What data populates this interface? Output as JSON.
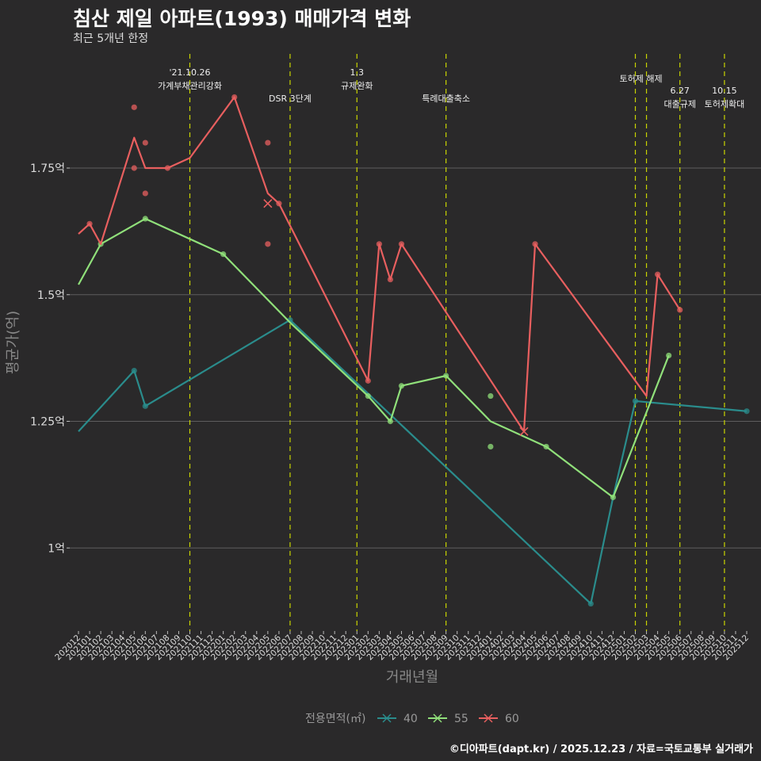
{
  "chart_data": {
    "type": "line",
    "title": "침산 제일 아파트(1993) 매매가격 변화",
    "subtitle": "최근 5개년 한정",
    "xlabel": "거래년월",
    "ylabel": "평균가(억)",
    "caption": "©디아파트(dapt.kr) / 2025.12.23 / 자료=국토교통부 실거래가",
    "legend": {
      "title": "전용면적(㎡)",
      "placement": "bottom"
    },
    "ylim": [
      0.8,
      1.95
    ],
    "yticks": [
      {
        "v": 1.0,
        "label": "1억"
      },
      {
        "v": 1.25,
        "label": "1.25억"
      },
      {
        "v": 1.5,
        "label": "1.5억"
      },
      {
        "v": 1.75,
        "label": "1.75억"
      }
    ],
    "x": [
      "202012",
      "202101",
      "202102",
      "202103",
      "202104",
      "202105",
      "202106",
      "202107",
      "202108",
      "202109",
      "202110",
      "202111",
      "202112",
      "202201",
      "202202",
      "202203",
      "202204",
      "202205",
      "202206",
      "202207",
      "202208",
      "202209",
      "202210",
      "202211",
      "202212",
      "202301",
      "202302",
      "202303",
      "202304",
      "202305",
      "202306",
      "202307",
      "202308",
      "202309",
      "202310",
      "202311",
      "202312",
      "202401",
      "202402",
      "202403",
      "202404",
      "202405",
      "202406",
      "202407",
      "202408",
      "202409",
      "202410",
      "202411",
      "202412",
      "202501",
      "202502",
      "202503",
      "202504",
      "202505",
      "202506",
      "202507",
      "202508",
      "202509",
      "202510",
      "202511",
      "202512"
    ],
    "series": [
      {
        "name": "40",
        "color": "#2a8c8c",
        "line": [
          [
            "202012",
            1.23
          ],
          [
            "202105",
            1.35
          ],
          [
            "202106",
            1.28
          ],
          [
            "202207",
            1.45
          ],
          [
            "202410",
            0.89
          ],
          [
            "202412",
            1.1
          ],
          [
            "202502",
            1.29
          ],
          [
            "202512",
            1.27
          ]
        ],
        "points": [
          [
            "202105",
            1.35
          ],
          [
            "202106",
            1.28
          ],
          [
            "202207",
            1.45
          ],
          [
            "202410",
            0.89
          ],
          [
            "202502",
            1.29
          ],
          [
            "202512",
            1.27
          ]
        ]
      },
      {
        "name": "55",
        "color": "#90e07a",
        "line": [
          [
            "202012",
            1.52
          ],
          [
            "202102",
            1.6
          ],
          [
            "202106",
            1.65
          ],
          [
            "202201",
            1.58
          ],
          [
            "202207",
            1.445
          ],
          [
            "202302",
            1.3
          ],
          [
            "202304",
            1.25
          ],
          [
            "202305",
            1.32
          ],
          [
            "202309",
            1.34
          ],
          [
            "202401",
            1.25
          ],
          [
            "202406",
            1.2
          ],
          [
            "202412",
            1.1
          ],
          [
            "202505",
            1.38
          ]
        ],
        "points": [
          [
            "202102",
            1.6
          ],
          [
            "202106",
            1.65
          ],
          [
            "202201",
            1.58
          ],
          [
            "202302",
            1.3
          ],
          [
            "202304",
            1.25
          ],
          [
            "202305",
            1.32
          ],
          [
            "202309",
            1.34
          ],
          [
            "202401",
            1.3
          ],
          [
            "202401",
            1.2
          ],
          [
            "202406",
            1.2
          ],
          [
            "202412",
            1.1
          ],
          [
            "202505",
            1.38
          ]
        ]
      },
      {
        "name": "60",
        "color": "#e85f5f",
        "line": [
          [
            "202012",
            1.62
          ],
          [
            "202101",
            1.64
          ],
          [
            "202102",
            1.6
          ],
          [
            "202105",
            1.81
          ],
          [
            "202106",
            1.75
          ],
          [
            "202108",
            1.75
          ],
          [
            "202110",
            1.77
          ],
          [
            "202202",
            1.89
          ],
          [
            "202205",
            1.7
          ],
          [
            "202206",
            1.68
          ],
          [
            "202302",
            1.33
          ],
          [
            "202303",
            1.6
          ],
          [
            "202304",
            1.53
          ],
          [
            "202305",
            1.6
          ],
          [
            "202404",
            1.23
          ],
          [
            "202405",
            1.6
          ],
          [
            "202503",
            1.3
          ],
          [
            "202504",
            1.54
          ],
          [
            "202506",
            1.47
          ]
        ],
        "points": [
          [
            "202101",
            1.64
          ],
          [
            "202105",
            1.87
          ],
          [
            "202105",
            1.75
          ],
          [
            "202106",
            1.8
          ],
          [
            "202106",
            1.7
          ],
          [
            "202108",
            1.75
          ],
          [
            "202202",
            1.89
          ],
          [
            "202205",
            1.8
          ],
          [
            "202205",
            1.6
          ],
          [
            "202206",
            1.68
          ],
          [
            "202302",
            1.33
          ],
          [
            "202303",
            1.6
          ],
          [
            "202304",
            1.53
          ],
          [
            "202305",
            1.6
          ],
          [
            "202405",
            1.6
          ],
          [
            "202504",
            1.54
          ],
          [
            "202506",
            1.47
          ]
        ],
        "cancelled": [
          [
            "202205",
            1.68
          ],
          [
            "202404",
            1.23
          ]
        ]
      }
    ],
    "events": [
      {
        "x": "202110",
        "lines": [
          "'21.10.26",
          "가계부채관리강화"
        ],
        "row": 0
      },
      {
        "x": "202207",
        "lines": [
          "DSR 3단계"
        ],
        "row": 2
      },
      {
        "x": "202301",
        "lines": [
          "1.3",
          "규제완화"
        ],
        "row": 0
      },
      {
        "x": "202309",
        "lines": [
          "특례대출축소"
        ],
        "row": 2
      },
      {
        "x": "202502",
        "lines": [],
        "row": 0
      },
      {
        "x": "202503",
        "lines": [
          "토허제 해제"
        ],
        "row": 1,
        "offset": -7
      },
      {
        "x": "202506",
        "lines": [
          "6.27",
          "대출규제"
        ],
        "row": 1
      },
      {
        "x": "202510",
        "lines": [
          "10.15",
          "토허제확대"
        ],
        "row": 1
      }
    ]
  }
}
